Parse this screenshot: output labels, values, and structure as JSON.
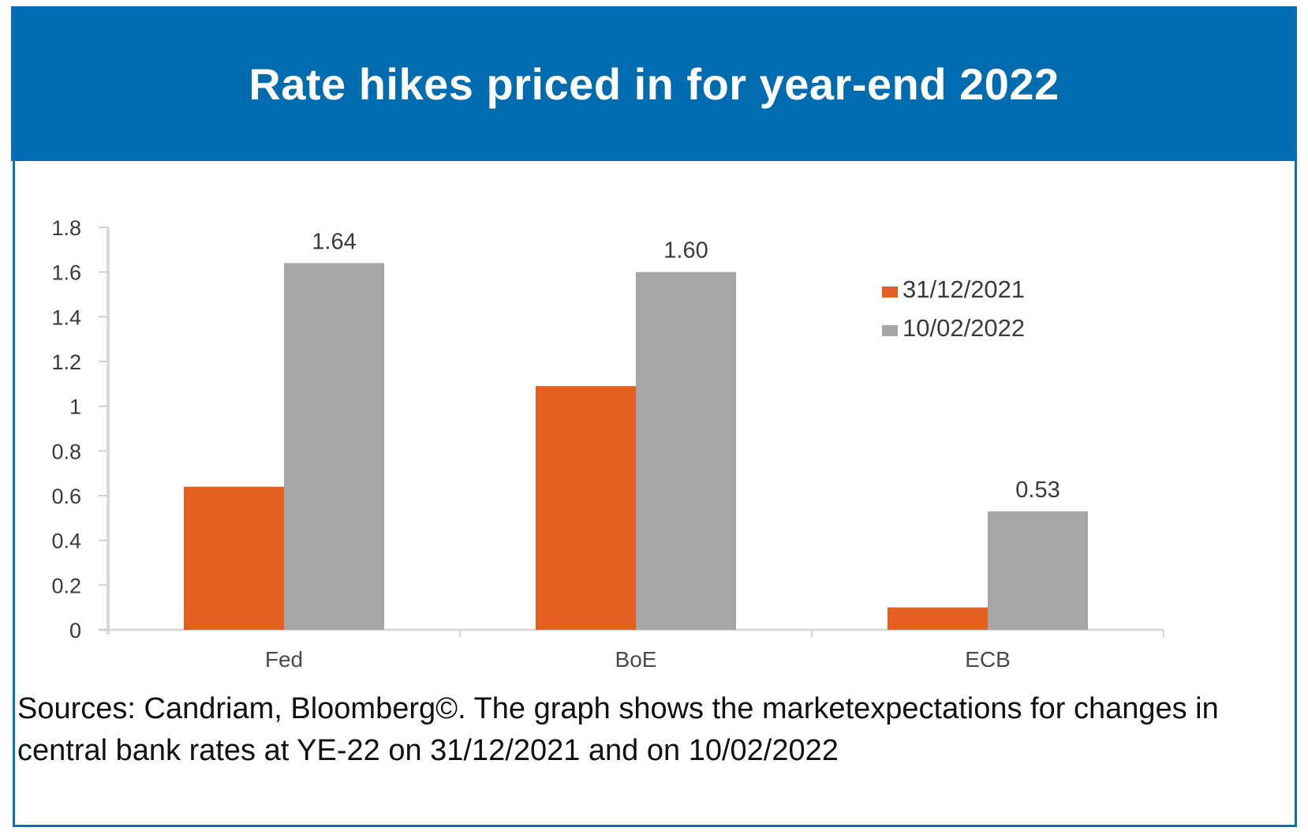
{
  "header": {
    "title": "Rate hikes priced in for year-end 2022"
  },
  "colors": {
    "header_bg": "#006cb0",
    "series_1": "#e55f20",
    "series_2": "#a6a6a6",
    "axis": "#d9d9d9"
  },
  "chart_data": {
    "type": "bar",
    "title": "Rate hikes priced in for year-end 2022",
    "xlabel": "",
    "ylabel": "",
    "categories": [
      "Fed",
      "BoE",
      "ECB"
    ],
    "series": [
      {
        "name": "31/12/2021",
        "values": [
          0.64,
          1.09,
          0.1
        ]
      },
      {
        "name": "10/02/2022",
        "values": [
          1.64,
          1.6,
          0.53
        ]
      }
    ],
    "data_labels": {
      "10/02/2022": [
        "1.64",
        "1.60",
        "0.53"
      ]
    },
    "ylim": [
      0,
      1.8
    ],
    "yticks": [
      0,
      0.2,
      0.4,
      0.6,
      0.8,
      1,
      1.2,
      1.4,
      1.6,
      1.8
    ],
    "ytick_labels": [
      "0",
      "0.2",
      "0.4",
      "0.6",
      "0.8",
      "1",
      "1.2",
      "1.4",
      "1.6",
      "1.8"
    ],
    "grid": false,
    "legend_position": "top-right"
  },
  "caption": "Sources: Candriam, Bloomberg©. The graph shows the marketexpectations for changes in central bank rates at YE-22 on 31/12/2021 and on 10/02/2022"
}
